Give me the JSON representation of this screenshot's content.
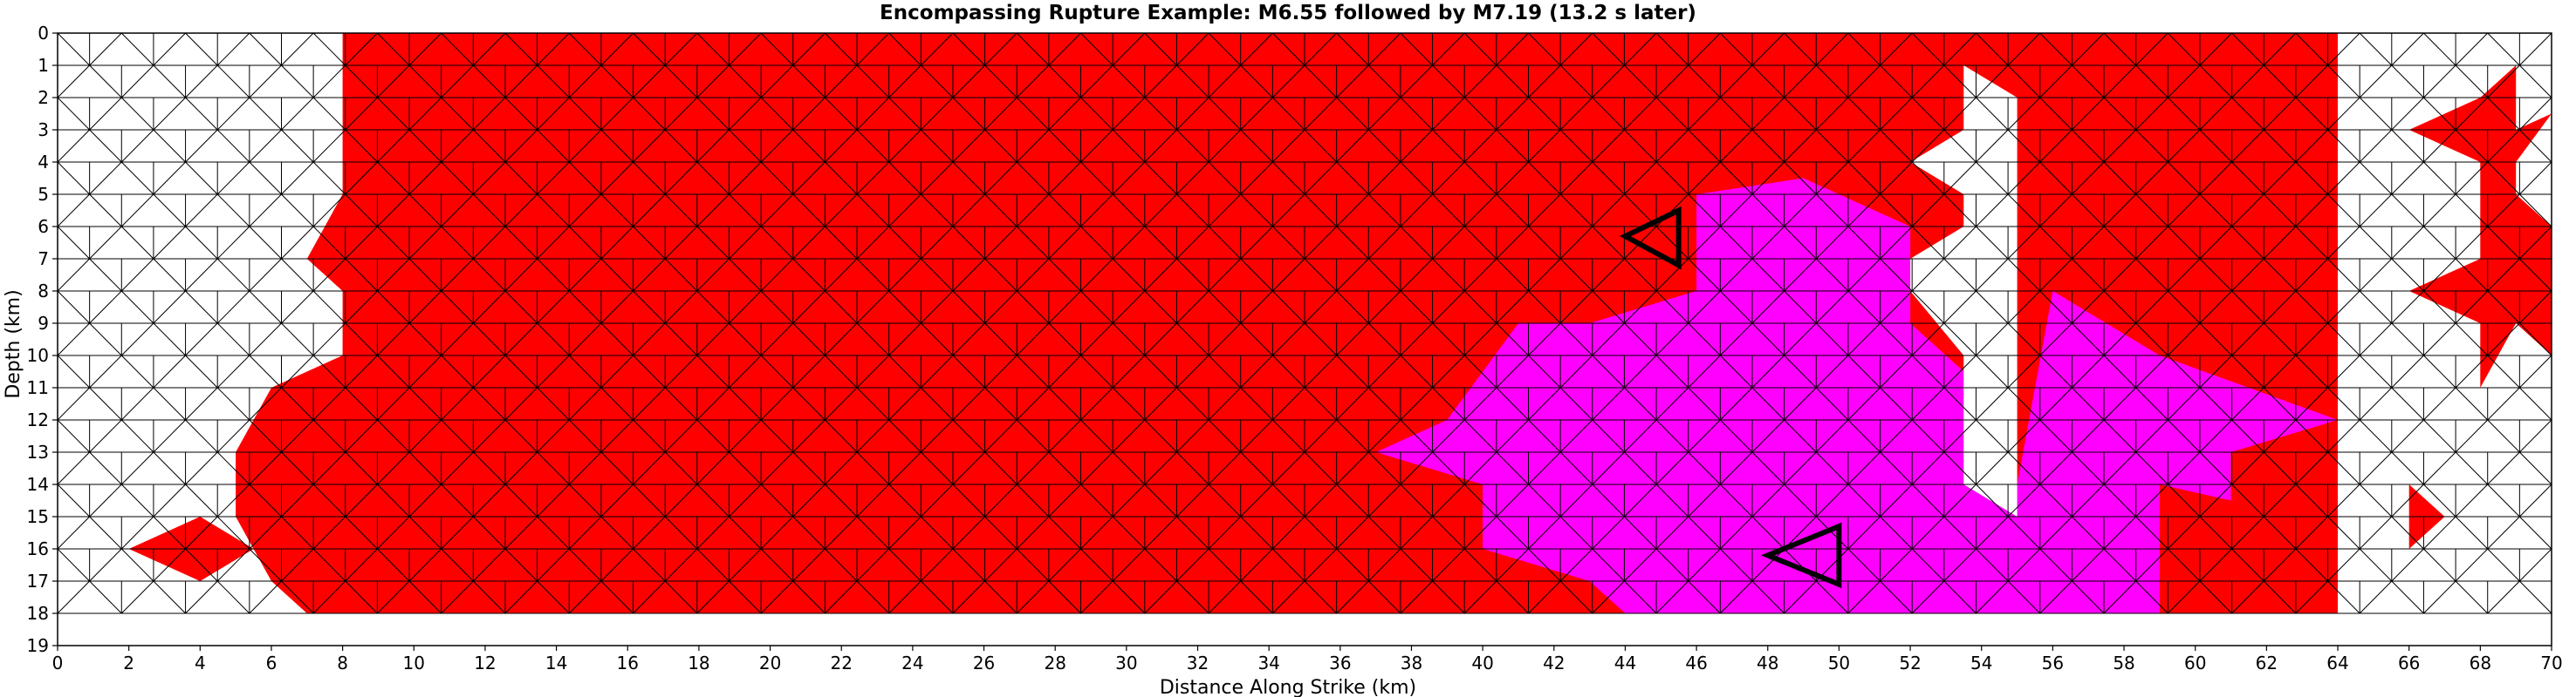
{
  "chart_data": {
    "type": "heatmap",
    "title": "Encompassing Rupture Example: M6.55 followed by M7.19 (13.2 s later)",
    "xlabel": "Distance Along Strike (km)",
    "ylabel": "Depth (km)",
    "xlim": [
      0,
      70
    ],
    "ylim": [
      19,
      0
    ],
    "grid": false,
    "xticks": [
      "0",
      "2",
      "4",
      "6",
      "8",
      "10",
      "12",
      "14",
      "16",
      "18",
      "20",
      "22",
      "24",
      "26",
      "28",
      "30",
      "32",
      "34",
      "36",
      "38",
      "40",
      "42",
      "44",
      "46",
      "48",
      "50",
      "52",
      "54",
      "56",
      "58",
      "60",
      "62",
      "64",
      "66",
      "68",
      "70"
    ],
    "yticks": [
      "0",
      "1",
      "2",
      "3",
      "4",
      "5",
      "6",
      "7",
      "8",
      "9",
      "10",
      "11",
      "12",
      "13",
      "14",
      "15",
      "16",
      "17",
      "18",
      "19"
    ],
    "mesh": {
      "x_extent_km": [
        0,
        70
      ],
      "depth_extent_km": [
        0,
        18
      ],
      "columns": 39,
      "rows": 18
    },
    "colors": {
      "first_rupture": "#ff0000",
      "second_rupture": "#ff00ff",
      "unruptured": "#ffffff",
      "edge_ruptured": "#000000",
      "edge_unruptured": "#8c8c8c",
      "hypocenter_marker": "#000000"
    },
    "series": [
      {
        "name": "",
        "kind": "first-rupture-region",
        "color": "#ff0000",
        "boundary": [
          [
            8,
            0
          ],
          [
            64,
            0
          ],
          [
            64,
            18
          ],
          [
            7,
            18
          ],
          [
            6,
            17
          ],
          [
            5,
            15
          ],
          [
            5,
            13
          ],
          [
            6,
            11
          ],
          [
            8,
            10
          ],
          [
            8,
            8
          ],
          [
            7,
            7
          ],
          [
            8,
            5
          ],
          [
            8,
            0
          ]
        ]
      },
      {
        "name": "",
        "kind": "second-rupture-region",
        "color": "#ff00ff",
        "boundary": [
          [
            46,
            5
          ],
          [
            49,
            4.5
          ],
          [
            52,
            6
          ],
          [
            52,
            9
          ],
          [
            54,
            11
          ],
          [
            55,
            14
          ],
          [
            56,
            8
          ],
          [
            59,
            10
          ],
          [
            64,
            12
          ],
          [
            61,
            13
          ],
          [
            61,
            14.5
          ],
          [
            59,
            14
          ],
          [
            59,
            18
          ],
          [
            44,
            18
          ],
          [
            43,
            17
          ],
          [
            40,
            16
          ],
          [
            40,
            14
          ],
          [
            37,
            13
          ],
          [
            39,
            12
          ],
          [
            41,
            9
          ],
          [
            43,
            9
          ],
          [
            46,
            8
          ],
          [
            46,
            5
          ]
        ]
      },
      {
        "name": "",
        "kind": "unruptured-gap",
        "color": "#ffffff",
        "boundary": [
          [
            53.5,
            1
          ],
          [
            55,
            2
          ],
          [
            55,
            15
          ],
          [
            53.5,
            14
          ],
          [
            53.5,
            10
          ],
          [
            52,
            8
          ],
          [
            52,
            7
          ],
          [
            53.5,
            6
          ],
          [
            53.5,
            5
          ],
          [
            52,
            4
          ],
          [
            53.5,
            3
          ],
          [
            53.5,
            1
          ]
        ]
      },
      {
        "name": "",
        "kind": "unruptured-gap",
        "color": "#ffffff",
        "boundary": [
          [
            64,
            0
          ],
          [
            70,
            0
          ],
          [
            70,
            18
          ],
          [
            64,
            18
          ]
        ]
      },
      {
        "name": "",
        "kind": "first-rupture-region",
        "color": "#ff0000",
        "boundary": [
          [
            66,
            3
          ],
          [
            68,
            2
          ],
          [
            69,
            1
          ],
          [
            69,
            3
          ],
          [
            70,
            2.5
          ],
          [
            69,
            4
          ],
          [
            69,
            5
          ],
          [
            70,
            6
          ],
          [
            70,
            10
          ],
          [
            69,
            9
          ],
          [
            68,
            11
          ],
          [
            68,
            9
          ],
          [
            66,
            8
          ],
          [
            68,
            7
          ],
          [
            68,
            4
          ],
          [
            66,
            3
          ]
        ]
      },
      {
        "name": "",
        "kind": "first-rupture-region",
        "color": "#ff0000",
        "boundary": [
          [
            66,
            14
          ],
          [
            67,
            15
          ],
          [
            66,
            16
          ]
        ]
      },
      {
        "name": "",
        "kind": "first-rupture-region",
        "color": "#ff0000",
        "boundary": [
          [
            2,
            16
          ],
          [
            4,
            15
          ],
          [
            5.5,
            16
          ],
          [
            4,
            17
          ]
        ]
      }
    ],
    "annotations": [
      {
        "kind": "hypocenter",
        "label": "",
        "points": [
          [
            45.5,
            5.5
          ],
          [
            44,
            6.3
          ],
          [
            45.5,
            7.2
          ]
        ]
      },
      {
        "kind": "hypocenter",
        "label": "",
        "points": [
          [
            50,
            15.3
          ],
          [
            48,
            16.2
          ],
          [
            50,
            17.1
          ]
        ]
      }
    ]
  }
}
